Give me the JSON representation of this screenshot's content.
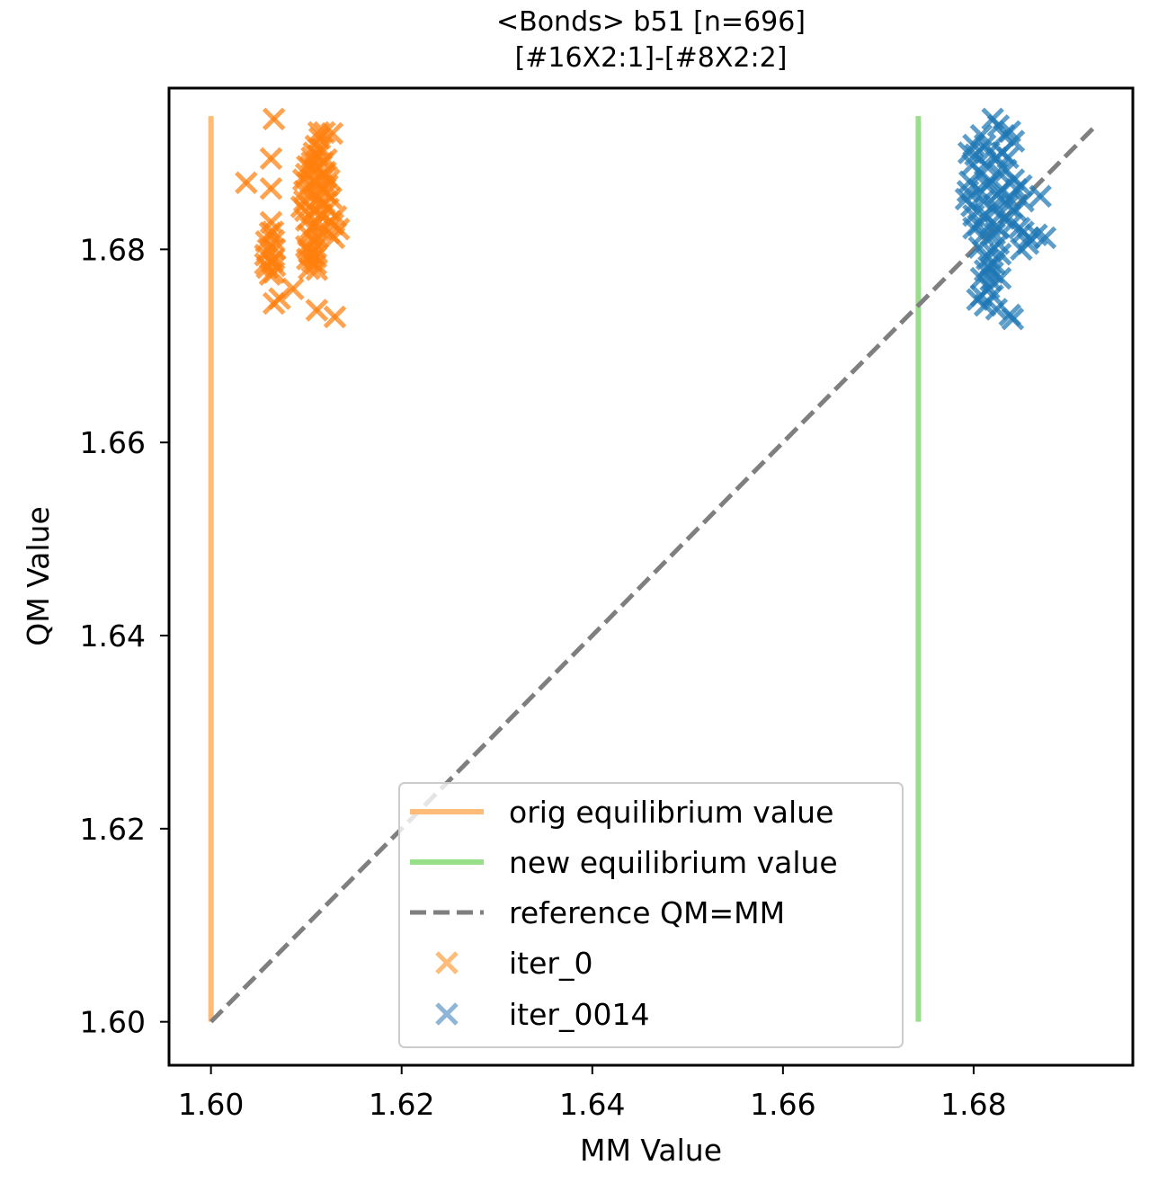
{
  "chart_data": {
    "type": "scatter",
    "title": "<Bonds> b51 [n=696]",
    "subtitle": "[#16X2:1]-[#8X2:2]",
    "xlabel": "MM Value",
    "ylabel": "QM Value",
    "xlim": [
      1.5956,
      1.6967
    ],
    "ylim": [
      1.5955,
      1.6967
    ],
    "xticks": [
      1.6,
      1.62,
      1.64,
      1.66,
      1.68
    ],
    "yticks": [
      1.6,
      1.62,
      1.64,
      1.66,
      1.68
    ],
    "xtick_labels": [
      "1.60",
      "1.62",
      "1.64",
      "1.66",
      "1.68"
    ],
    "ytick_labels": [
      "1.60",
      "1.62",
      "1.64",
      "1.66",
      "1.68"
    ],
    "grid": false,
    "legend_position": "lower-center",
    "reference_lines": [
      {
        "name": "orig equilibrium value",
        "kind": "vertical",
        "x": 1.6,
        "y_range": [
          1.6,
          1.6938
        ],
        "color": "#ffbb78"
      },
      {
        "name": "new equilibrium value",
        "kind": "vertical",
        "x": 1.6742,
        "y_range": [
          1.6,
          1.6938
        ],
        "color": "#98df8a"
      },
      {
        "name": "reference QM=MM",
        "kind": "diagonal",
        "x_range": [
          1.6,
          1.693
        ],
        "color": "#7f7f7f"
      }
    ],
    "series": [
      {
        "name": "iter_0",
        "marker": "x",
        "color": "#ff7f0e",
        "points": [
          [
            1.6066,
            1.6935
          ],
          [
            1.6063,
            1.6894
          ],
          [
            1.6063,
            1.6863
          ],
          [
            1.6037,
            1.6869
          ],
          [
            1.6063,
            1.6828
          ],
          [
            1.6062,
            1.6817
          ],
          [
            1.6058,
            1.6808
          ],
          [
            1.606,
            1.68
          ],
          [
            1.6057,
            1.6794
          ],
          [
            1.6064,
            1.6787
          ],
          [
            1.6059,
            1.6781
          ],
          [
            1.6062,
            1.6774
          ],
          [
            1.6057,
            1.6785
          ],
          [
            1.6065,
            1.6818
          ],
          [
            1.6066,
            1.6809
          ],
          [
            1.6067,
            1.68
          ],
          [
            1.6066,
            1.679
          ],
          [
            1.6067,
            1.6783
          ],
          [
            1.6066,
            1.6776
          ],
          [
            1.6066,
            1.6744
          ],
          [
            1.6072,
            1.6749
          ],
          [
            1.6086,
            1.6759
          ],
          [
            1.6111,
            1.6737
          ],
          [
            1.613,
            1.673
          ],
          [
            1.6095,
            1.6844
          ],
          [
            1.6098,
            1.686
          ],
          [
            1.61,
            1.6878
          ],
          [
            1.6104,
            1.6885
          ],
          [
            1.6106,
            1.6895
          ],
          [
            1.611,
            1.6907
          ],
          [
            1.6114,
            1.6915
          ],
          [
            1.6119,
            1.6921
          ],
          [
            1.6113,
            1.6921
          ],
          [
            1.6127,
            1.692
          ],
          [
            1.61,
            1.683
          ],
          [
            1.6102,
            1.6815
          ],
          [
            1.61,
            1.6803
          ],
          [
            1.6101,
            1.679
          ],
          [
            1.6103,
            1.678
          ],
          [
            1.6106,
            1.6788
          ],
          [
            1.6109,
            1.68
          ],
          [
            1.6112,
            1.6812
          ],
          [
            1.611,
            1.6826
          ],
          [
            1.6107,
            1.684
          ],
          [
            1.6112,
            1.6852
          ],
          [
            1.6115,
            1.6866
          ],
          [
            1.6118,
            1.6878
          ],
          [
            1.6117,
            1.689
          ],
          [
            1.6108,
            1.69
          ],
          [
            1.6104,
            1.6868
          ],
          [
            1.6098,
            1.685
          ],
          [
            1.6102,
            1.68
          ],
          [
            1.6107,
            1.6795
          ],
          [
            1.611,
            1.6792
          ],
          [
            1.6113,
            1.682
          ],
          [
            1.6116,
            1.6836
          ],
          [
            1.6119,
            1.6848
          ],
          [
            1.6121,
            1.6858
          ],
          [
            1.6123,
            1.6842
          ],
          [
            1.6125,
            1.6829
          ],
          [
            1.6124,
            1.6817
          ],
          [
            1.6128,
            1.6826
          ],
          [
            1.6131,
            1.6834
          ],
          [
            1.6134,
            1.6821
          ],
          [
            1.6129,
            1.6812
          ],
          [
            1.6126,
            1.6853
          ],
          [
            1.6122,
            1.6866
          ],
          [
            1.612,
            1.688
          ],
          [
            1.6115,
            1.6835
          ],
          [
            1.6104,
            1.686
          ],
          [
            1.6109,
            1.687
          ],
          [
            1.6111,
            1.6883
          ],
          [
            1.6097,
            1.6872
          ],
          [
            1.6099,
            1.684
          ],
          [
            1.6105,
            1.6822
          ],
          [
            1.6108,
            1.6808
          ],
          [
            1.6104,
            1.6796
          ],
          [
            1.611,
            1.6785
          ],
          [
            1.6111,
            1.6779
          ],
          [
            1.6114,
            1.6845
          ],
          [
            1.6117,
            1.6862
          ],
          [
            1.6119,
            1.6875
          ],
          [
            1.6106,
            1.689
          ],
          [
            1.6112,
            1.6897
          ],
          [
            1.6101,
            1.6886
          ],
          [
            1.6116,
            1.6904
          ],
          [
            1.6121,
            1.6893
          ],
          [
            1.6124,
            1.6872
          ]
        ]
      },
      {
        "name": "iter_0014",
        "marker": "x",
        "color": "#1f77b4",
        "points": [
          [
            1.682,
            1.6935
          ],
          [
            1.6826,
            1.6928
          ],
          [
            1.6832,
            1.6918
          ],
          [
            1.6838,
            1.6922
          ],
          [
            1.6842,
            1.6912
          ],
          [
            1.6808,
            1.6918
          ],
          [
            1.6812,
            1.6908
          ],
          [
            1.6802,
            1.6898
          ],
          [
            1.6799,
            1.6888
          ],
          [
            1.6812,
            1.6888
          ],
          [
            1.6808,
            1.6878
          ],
          [
            1.6796,
            1.687
          ],
          [
            1.6794,
            1.686
          ],
          [
            1.6805,
            1.6862
          ],
          [
            1.6818,
            1.687
          ],
          [
            1.6826,
            1.688
          ],
          [
            1.6834,
            1.6882
          ],
          [
            1.6842,
            1.6872
          ],
          [
            1.6845,
            1.6862
          ],
          [
            1.6838,
            1.6852
          ],
          [
            1.6826,
            1.6858
          ],
          [
            1.681,
            1.685
          ],
          [
            1.6798,
            1.6845
          ],
          [
            1.6792,
            1.6852
          ],
          [
            1.68,
            1.6835
          ],
          [
            1.6812,
            1.6836
          ],
          [
            1.6822,
            1.684
          ],
          [
            1.6832,
            1.6832
          ],
          [
            1.684,
            1.6826
          ],
          [
            1.6848,
            1.6822
          ],
          [
            1.6852,
            1.6818
          ],
          [
            1.6858,
            1.6812
          ],
          [
            1.6866,
            1.6815
          ],
          [
            1.6875,
            1.6812
          ],
          [
            1.687,
            1.6855
          ],
          [
            1.6852,
            1.685
          ],
          [
            1.685,
            1.6866
          ],
          [
            1.6818,
            1.6826
          ],
          [
            1.6822,
            1.6816
          ],
          [
            1.6826,
            1.6806
          ],
          [
            1.6818,
            1.6798
          ],
          [
            1.6814,
            1.679
          ],
          [
            1.6816,
            1.6782
          ],
          [
            1.682,
            1.6776
          ],
          [
            1.6818,
            1.6768
          ],
          [
            1.6816,
            1.676
          ],
          [
            1.6808,
            1.677
          ],
          [
            1.682,
            1.6752
          ],
          [
            1.6808,
            1.6752
          ],
          [
            1.6804,
            1.6748
          ],
          [
            1.6812,
            1.6742
          ],
          [
            1.6824,
            1.6738
          ],
          [
            1.6838,
            1.6732
          ],
          [
            1.6841,
            1.6728
          ],
          [
            1.685,
            1.68
          ],
          [
            1.6857,
            1.6806
          ],
          [
            1.6806,
            1.6802
          ],
          [
            1.681,
            1.6815
          ],
          [
            1.683,
            1.6862
          ],
          [
            1.6836,
            1.6845
          ],
          [
            1.6844,
            1.684
          ],
          [
            1.6805,
            1.6825
          ],
          [
            1.68,
            1.6822
          ],
          [
            1.6826,
            1.6822
          ],
          [
            1.6822,
            1.6846
          ],
          [
            1.6814,
            1.6866
          ],
          [
            1.6824,
            1.6895
          ],
          [
            1.6816,
            1.69
          ],
          [
            1.683,
            1.69
          ],
          [
            1.68,
            1.6908
          ],
          [
            1.6795,
            1.69
          ],
          [
            1.6836,
            1.6895
          ],
          [
            1.6828,
            1.6795
          ],
          [
            1.6822,
            1.6785
          ],
          [
            1.6812,
            1.6778
          ],
          [
            1.6828,
            1.677
          ]
        ]
      }
    ]
  }
}
